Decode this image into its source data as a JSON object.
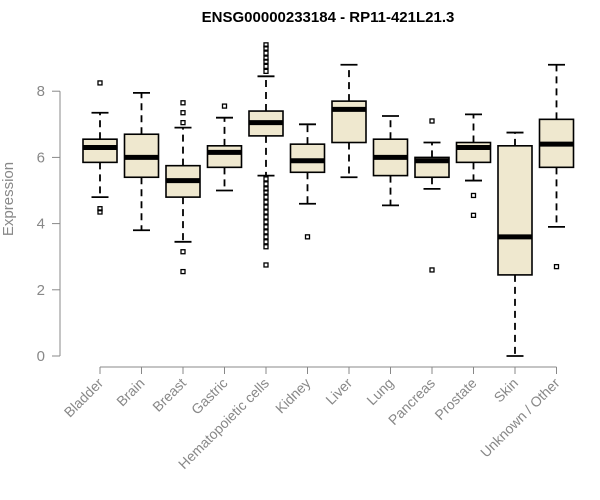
{
  "chart_data": {
    "type": "boxplot",
    "title": "ENSG00000233184 - RP11-421L21.3",
    "xlabel": "",
    "ylabel": "Expression",
    "ylim": [
      0,
      9.5
    ],
    "yticks": [
      0,
      2,
      4,
      6,
      8
    ],
    "grid": false,
    "box_color": "#efe8cf",
    "categories": [
      "Bladder",
      "Brain",
      "Breast",
      "Gastric",
      "Hematopoietic cells",
      "Kidney",
      "Liver",
      "Lung",
      "Pancreas",
      "Prostate",
      "Skin",
      "Unknown / Other"
    ],
    "boxes": [
      {
        "category": "Bladder",
        "whisker_low": 4.8,
        "q1": 5.85,
        "median": 6.3,
        "q3": 6.55,
        "whisker_high": 7.35,
        "outliers": [
          8.25,
          4.45,
          4.35
        ]
      },
      {
        "category": "Brain",
        "whisker_low": 3.8,
        "q1": 5.4,
        "median": 6.0,
        "q3": 6.7,
        "whisker_high": 7.95,
        "outliers": []
      },
      {
        "category": "Breast",
        "whisker_low": 3.45,
        "q1": 4.8,
        "median": 5.3,
        "q3": 5.75,
        "whisker_high": 6.9,
        "outliers": [
          7.65,
          7.35,
          7.05,
          3.15,
          2.55
        ]
      },
      {
        "category": "Gastric",
        "whisker_low": 5.0,
        "q1": 5.7,
        "median": 6.15,
        "q3": 6.35,
        "whisker_high": 7.2,
        "outliers": [
          7.55
        ]
      },
      {
        "category": "Hematopoietic cells",
        "whisker_low": 5.45,
        "q1": 6.65,
        "median": 7.05,
        "q3": 7.4,
        "whisker_high": 8.45,
        "outliers": [
          9.4,
          9.3,
          9.15,
          9.0,
          8.9,
          8.75,
          8.6,
          5.35,
          5.2,
          5.05,
          4.95,
          4.8,
          4.65,
          4.5,
          4.35,
          4.2,
          4.05,
          3.9,
          3.75,
          3.6,
          3.45,
          3.3,
          2.75
        ]
      },
      {
        "category": "Kidney",
        "whisker_low": 4.6,
        "q1": 5.55,
        "median": 5.9,
        "q3": 6.4,
        "whisker_high": 7.0,
        "outliers": [
          3.6
        ]
      },
      {
        "category": "Liver",
        "whisker_low": 5.4,
        "q1": 6.45,
        "median": 7.45,
        "q3": 7.7,
        "whisker_high": 8.8,
        "outliers": []
      },
      {
        "category": "Lung",
        "whisker_low": 4.55,
        "q1": 5.45,
        "median": 6.0,
        "q3": 6.55,
        "whisker_high": 7.25,
        "outliers": []
      },
      {
        "category": "Pancreas",
        "whisker_low": 5.05,
        "q1": 5.4,
        "median": 5.9,
        "q3": 6.0,
        "whisker_high": 6.45,
        "outliers": [
          7.1,
          2.6
        ]
      },
      {
        "category": "Prostate",
        "whisker_low": 5.3,
        "q1": 5.85,
        "median": 6.3,
        "q3": 6.45,
        "whisker_high": 7.3,
        "outliers": [
          4.85,
          4.25
        ]
      },
      {
        "category": "Skin",
        "whisker_low": 0.0,
        "q1": 2.45,
        "median": 3.6,
        "q3": 6.35,
        "whisker_high": 6.75,
        "outliers": []
      },
      {
        "category": "Unknown / Other",
        "whisker_low": 3.9,
        "q1": 5.7,
        "median": 6.4,
        "q3": 7.15,
        "whisker_high": 8.8,
        "outliers": [
          2.7
        ]
      }
    ]
  }
}
